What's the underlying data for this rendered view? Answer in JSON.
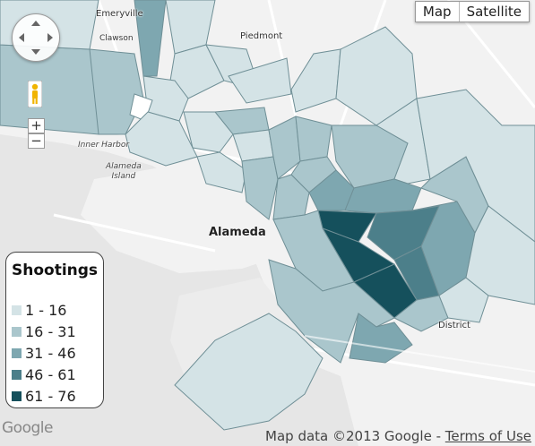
{
  "map_type_control": {
    "map_label": "Map",
    "satellite_label": "Satellite"
  },
  "place_labels": {
    "emeryville": "Emeryville",
    "clawson": "Clawson",
    "piedmont": "Piedmont",
    "inner_harbor": "Inner Harbor",
    "alameda_island": "Alameda\nIsland",
    "alameda": "Alameda",
    "district": "District"
  },
  "legend": {
    "title": "Shootings",
    "items": [
      {
        "range": "1 - 16",
        "color": "#d4e3e6"
      },
      {
        "range": "16 - 31",
        "color": "#aac6cc"
      },
      {
        "range": "31 - 46",
        "color": "#7ea7b0"
      },
      {
        "range": "46 - 61",
        "color": "#4c7f8a"
      },
      {
        "range": "61 - 76",
        "color": "#15505c"
      }
    ]
  },
  "colors": {
    "water": "#e6e6e6",
    "land": "#f4f4f4",
    "road": "#ffffff",
    "boundary": "#6f8f96"
  },
  "footer": {
    "logo": "Google",
    "map_data": "Map data ©2013 Google -",
    "terms": "Terms of Use"
  }
}
